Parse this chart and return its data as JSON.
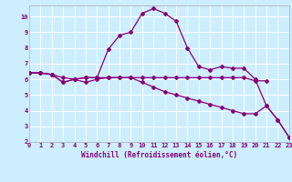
{
  "xlabel": "Windchill (Refroidissement éolien,°C)",
  "bg_color": "#cceeff",
  "line_color": "#880077",
  "grid_color": "#ffffff",
  "xlim": [
    0,
    23
  ],
  "ylim": [
    2,
    10.7
  ],
  "yticks": [
    2,
    3,
    4,
    5,
    6,
    7,
    8,
    9,
    10
  ],
  "xticks": [
    0,
    1,
    2,
    3,
    4,
    5,
    6,
    7,
    8,
    9,
    10,
    11,
    12,
    13,
    14,
    15,
    16,
    17,
    18,
    19,
    20,
    21,
    22,
    23
  ],
  "series": [
    {
      "x": [
        0,
        1,
        2,
        3,
        4,
        5,
        6,
        7,
        8,
        9,
        10,
        11,
        12,
        13,
        14,
        15,
        16,
        17,
        18,
        19,
        20,
        21
      ],
      "y": [
        6.4,
        6.4,
        6.3,
        6.1,
        6.0,
        5.8,
        6.0,
        6.1,
        6.1,
        6.1,
        6.1,
        6.1,
        6.1,
        6.1,
        6.1,
        6.1,
        6.1,
        6.1,
        6.1,
        6.1,
        5.9,
        5.9
      ]
    },
    {
      "x": [
        0,
        1,
        2,
        3,
        4,
        5,
        6,
        7,
        8,
        9,
        10,
        11,
        12,
        13,
        14,
        15,
        16,
        17,
        18,
        19,
        20,
        21,
        22,
        23
      ],
      "y": [
        6.4,
        6.4,
        6.3,
        5.8,
        6.0,
        6.1,
        6.1,
        7.9,
        8.8,
        9.0,
        10.2,
        10.5,
        10.2,
        9.7,
        8.0,
        6.8,
        6.6,
        6.8,
        6.7,
        6.7,
        6.0,
        4.3,
        3.4,
        2.3
      ]
    },
    {
      "x": [
        0,
        1,
        2,
        3,
        4,
        5,
        6,
        7,
        8,
        9,
        10,
        11,
        12,
        13,
        14,
        15,
        16,
        17,
        18,
        19,
        20,
        21,
        22,
        23
      ],
      "y": [
        6.4,
        6.4,
        6.3,
        5.8,
        6.0,
        6.1,
        6.1,
        6.1,
        6.1,
        6.1,
        5.8,
        5.5,
        5.2,
        5.0,
        4.8,
        4.6,
        4.4,
        4.2,
        4.0,
        3.8,
        3.8,
        4.3,
        3.4,
        2.3
      ]
    }
  ]
}
